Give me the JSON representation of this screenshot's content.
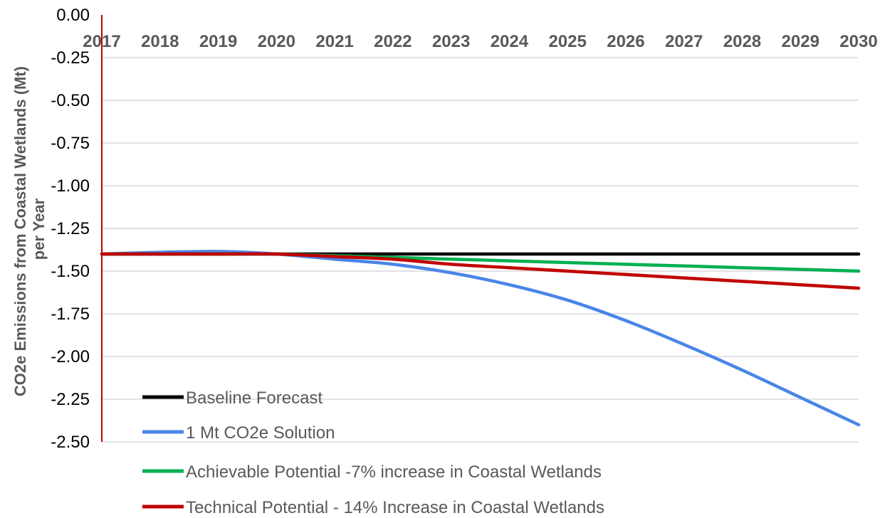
{
  "chart_data": {
    "type": "line",
    "title": "",
    "xlabel": "",
    "ylabel_lines": [
      "CO2e Emissions from Coastal Wetlands (Mt)",
      "per Year"
    ],
    "categories": [
      "2017",
      "2018",
      "2019",
      "2020",
      "2021",
      "2022",
      "2023",
      "2024",
      "2025",
      "2026",
      "2027",
      "2028",
      "2029",
      "2030"
    ],
    "y_ticks": [
      "0.00",
      "-0.25",
      "-0.50",
      "-0.75",
      "-1.00",
      "-1.25",
      "-1.50",
      "-1.75",
      "-2.00",
      "-2.25",
      "-2.50"
    ],
    "ylim": [
      -2.5,
      0
    ],
    "grid": "horizontal",
    "x_axis_position": "top",
    "legend_position": "bottom-left",
    "series": [
      {
        "name": "Baseline Forecast",
        "color": "#000000",
        "values": [
          -1.4,
          -1.4,
          -1.4,
          -1.4,
          -1.4,
          -1.4,
          -1.4,
          -1.4,
          -1.4,
          -1.4,
          -1.4,
          -1.4,
          -1.4,
          -1.4
        ]
      },
      {
        "name": "1 Mt CO2e Solution",
        "color": "#4a86e8",
        "values": [
          -1.4,
          -1.39,
          -1.385,
          -1.4,
          -1.43,
          -1.46,
          -1.51,
          -1.58,
          -1.67,
          -1.79,
          -1.93,
          -2.08,
          -2.24,
          -2.4
        ]
      },
      {
        "name": "Achievable Potential -7% increase in Coastal Wetlands",
        "color": "#00b050",
        "values": [
          -1.4,
          -1.4,
          -1.4,
          -1.4,
          -1.41,
          -1.42,
          -1.43,
          -1.44,
          -1.45,
          -1.46,
          -1.47,
          -1.48,
          -1.49,
          -1.5
        ]
      },
      {
        "name": "Technical Potential - 14% Increase in Coastal Wetlands",
        "color": "#c00000",
        "values": [
          -1.4,
          -1.4,
          -1.4,
          -1.4,
          -1.415,
          -1.43,
          -1.46,
          -1.48,
          -1.5,
          -1.52,
          -1.54,
          -1.56,
          -1.58,
          -1.6
        ]
      }
    ]
  }
}
